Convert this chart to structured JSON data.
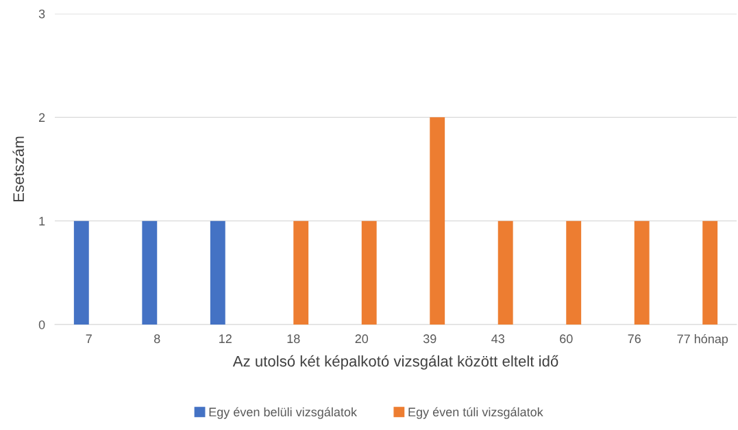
{
  "chart_data": {
    "type": "bar",
    "xlabel": "Az utolsó két képalkotó vizsgálat között eltelt idő",
    "ylabel": "Esetszám",
    "categories": [
      "7",
      "8",
      "12",
      "18",
      "20",
      "39",
      "43",
      "60",
      "76",
      "77 hónap"
    ],
    "series": [
      {
        "name": "Egy éven belüli vizsgálatok",
        "color": "#4472c4",
        "values": [
          1,
          1,
          1,
          null,
          null,
          null,
          null,
          null,
          null,
          null
        ]
      },
      {
        "name": "Egy éven túli vizsgálatok",
        "color": "#ed7d31",
        "values": [
          null,
          null,
          null,
          1,
          1,
          2,
          1,
          1,
          1,
          1
        ]
      }
    ],
    "ylim": [
      0,
      3
    ],
    "yticks": [
      0,
      1,
      2,
      3
    ],
    "grid": "y",
    "legend": "bottom"
  }
}
